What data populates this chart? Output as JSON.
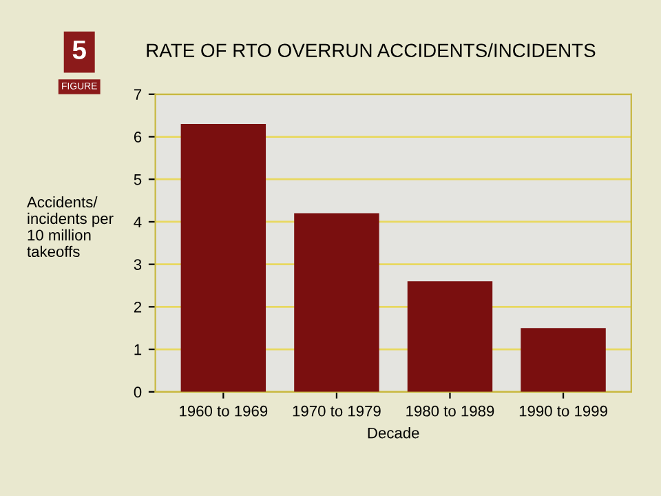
{
  "chart_data": {
    "type": "bar",
    "title": "RATE OF RTO OVERRUN ACCIDENTS/INCIDENTS",
    "annotations": [
      "5",
      "FIGURE"
    ],
    "xlabel": "Decade",
    "ylabel": "Accidents/\nincidents per\n10 million\ntakeoffs",
    "categories": [
      "1960 to 1969",
      "1970 to 1979",
      "1980 to 1989",
      "1990 to 1999"
    ],
    "values": [
      6.3,
      4.2,
      2.6,
      1.5
    ],
    "color": "#7a0f0f",
    "ylim": [
      0,
      7
    ],
    "yticks": [
      0,
      1,
      2,
      3,
      4,
      5,
      6,
      7
    ],
    "grid": "y"
  }
}
